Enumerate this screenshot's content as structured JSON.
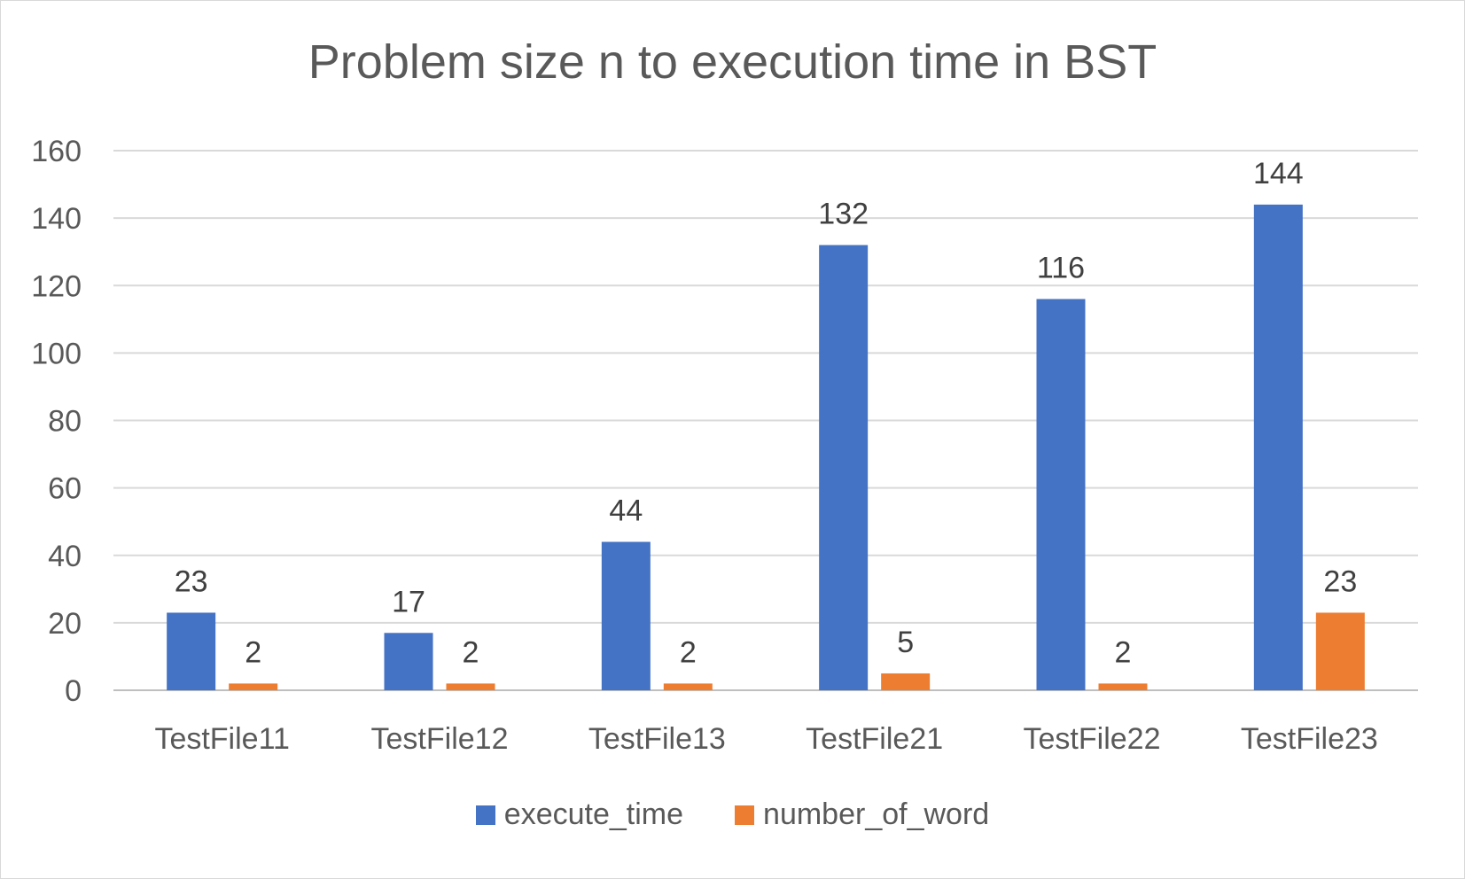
{
  "chart_data": {
    "type": "bar",
    "title": "Problem size n to execution time in BST",
    "categories": [
      "TestFile11",
      "TestFile12",
      "TestFile13",
      "TestFile21",
      "TestFile22",
      "TestFile23"
    ],
    "series": [
      {
        "name": "execute_time",
        "color": "#4472C4",
        "values": [
          23,
          17,
          44,
          132,
          116,
          144
        ]
      },
      {
        "name": "number_of_word",
        "color": "#ED7D31",
        "values": [
          2,
          2,
          2,
          5,
          2,
          23
        ]
      }
    ],
    "ylim": [
      0,
      160
    ],
    "yticks": [
      0,
      20,
      40,
      60,
      80,
      100,
      120,
      140,
      160
    ],
    "grid": true,
    "legend": "bottom",
    "data_labels": true
  }
}
